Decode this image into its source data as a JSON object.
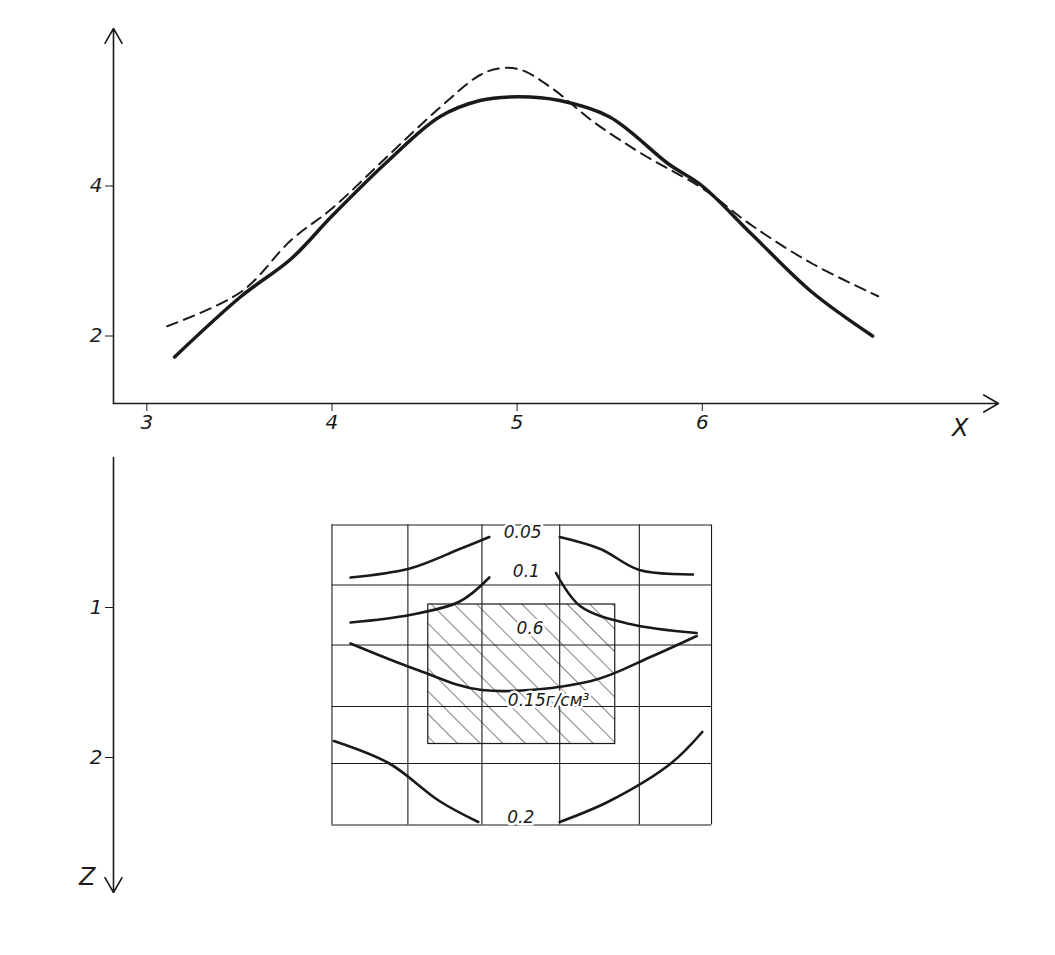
{
  "chart_data": [
    {
      "type": "line",
      "x_label": "X",
      "xlim": [
        2.82,
        7.6
      ],
      "xticks": [
        3,
        4,
        5,
        6
      ],
      "ylim": [
        1.1,
        6.1
      ],
      "yticks": [
        2,
        4
      ],
      "series": [
        {
          "color": "#1a1a1a",
          "line_style": "solid",
          "x": [
            3.15,
            3.51,
            3.78,
            4.0,
            4.31,
            4.58,
            4.8,
            5.0,
            5.23,
            5.5,
            5.82,
            6.0,
            6.27,
            6.59,
            6.92
          ],
          "values": [
            1.72,
            2.53,
            3.03,
            3.6,
            4.35,
            4.92,
            5.14,
            5.19,
            5.14,
            4.92,
            4.29,
            4.0,
            3.35,
            2.59,
            2.0
          ]
        },
        {
          "color": "#1a1a1a",
          "line_style": "dashed",
          "x": [
            3.11,
            3.51,
            3.78,
            4.0,
            4.31,
            4.58,
            4.8,
            4.91,
            5.02,
            5.19,
            5.41,
            5.68,
            6.0,
            6.27,
            6.59,
            6.95
          ],
          "values": [
            2.13,
            2.59,
            3.28,
            3.7,
            4.42,
            5.04,
            5.48,
            5.57,
            5.55,
            5.3,
            4.86,
            4.42,
            3.97,
            3.47,
            2.97,
            2.53
          ]
        }
      ]
    },
    {
      "type": "contour",
      "y_label": "Z",
      "ylim": [
        0,
        2.9
      ],
      "yticks": [
        1,
        2
      ],
      "mesh_x": [
        4.0,
        4.41,
        4.81,
        5.23,
        5.66,
        6.05
      ],
      "mesh_z": [
        0.45,
        0.85,
        1.25,
        1.66,
        2.04,
        2.45
      ],
      "body": {
        "label": "0.6",
        "x": [
          4.52,
          5.53
        ],
        "z": [
          0.98,
          1.91
        ],
        "label_at": [
          5.07,
          1.14
        ]
      },
      "contours": [
        {
          "label": "0.05",
          "label_at": [
            5.03,
            0.5
          ],
          "segments": [
            {
              "x": [
                4.1,
                4.42,
                4.69,
                4.85
              ],
              "z": [
                0.8,
                0.74,
                0.61,
                0.53
              ]
            },
            {
              "x": [
                5.23,
                5.45,
                5.66,
                5.95
              ],
              "z": [
                0.53,
                0.61,
                0.75,
                0.78
              ]
            }
          ]
        },
        {
          "label": "0.1",
          "label_at": [
            5.05,
            0.76
          ],
          "segments": [
            {
              "x": [
                4.1,
                4.42,
                4.69,
                4.85
              ],
              "z": [
                1.1,
                1.05,
                0.96,
                0.8
              ]
            },
            {
              "x": [
                5.21,
                5.34,
                5.61,
                5.97
              ],
              "z": [
                0.77,
                0.99,
                1.11,
                1.17
              ]
            }
          ]
        },
        {
          "label": "0.15г/см³",
          "label_at": [
            5.17,
            1.62
          ],
          "segments": [
            {
              "x": [
                4.1,
                4.47,
                4.81,
                5.4,
                5.72,
                5.97
              ],
              "z": [
                1.24,
                1.42,
                1.55,
                1.49,
                1.33,
                1.19
              ]
            }
          ]
        },
        {
          "label": "0.2",
          "label_at": [
            5.02,
            2.4
          ],
          "segments": [
            {
              "x": [
                4.01,
                4.31,
                4.58,
                4.79
              ],
              "z": [
                1.89,
                2.04,
                2.29,
                2.43
              ]
            },
            {
              "x": [
                5.23,
                5.5,
                5.83,
                6.0
              ],
              "z": [
                2.43,
                2.29,
                2.04,
                1.83
              ]
            }
          ]
        }
      ]
    }
  ]
}
